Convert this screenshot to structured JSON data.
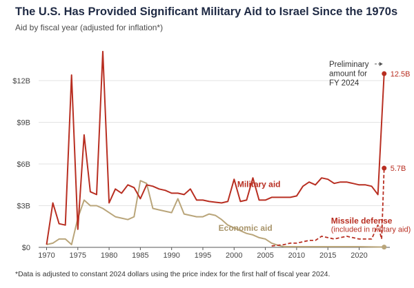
{
  "title": "The U.S. Has Provided Significant Military Aid to Israel Since the 1970s",
  "subtitle": "Aid by fiscal year (adjusted for inflation*)",
  "footnote": "*Data is adjusted to constant 2024 dollars using the price index for the first half of fiscal year 2024.",
  "colors": {
    "military": "#b82e21",
    "economic": "#b9a57a",
    "missile": "#b82e21",
    "grid": "#e3e3e3",
    "axis": "#555555"
  },
  "chart_data": {
    "type": "line",
    "title": "The U.S. Has Provided Significant Military Aid to Israel Since the 1970s",
    "subtitle": "Aid by fiscal year (adjusted for inflation*)",
    "xlabel": "",
    "ylabel": "",
    "xlim": [
      1969,
      2026
    ],
    "ylim": [
      0,
      15
    ],
    "grid": true,
    "x_ticks": [
      1970,
      1975,
      1980,
      1985,
      1990,
      1995,
      2000,
      2005,
      2010,
      2015,
      2020
    ],
    "x_tick_labels": [
      "1970",
      "1975",
      "1980",
      "1985",
      "1990",
      "1995",
      "2000",
      "2005",
      "2010",
      "2015",
      "2020"
    ],
    "y_ticks": [
      0,
      3,
      6,
      9,
      12
    ],
    "y_tick_labels": [
      "$0",
      "$3B",
      "$6B",
      "$9B",
      "$12B"
    ],
    "series": [
      {
        "name": "Military aid",
        "style": "solid",
        "points": [
          [
            1970,
            0.2
          ],
          [
            1971,
            3.2
          ],
          [
            1972,
            1.7
          ],
          [
            1973,
            1.6
          ],
          [
            1974,
            12.4
          ],
          [
            1975,
            1.3
          ],
          [
            1976,
            8.1
          ],
          [
            1977,
            4.0
          ],
          [
            1978,
            3.8
          ],
          [
            1979,
            14.1
          ],
          [
            1980,
            3.2
          ],
          [
            1981,
            4.2
          ],
          [
            1982,
            3.9
          ],
          [
            1983,
            4.5
          ],
          [
            1984,
            4.3
          ],
          [
            1985,
            3.5
          ],
          [
            1986,
            4.5
          ],
          [
            1987,
            4.4
          ],
          [
            1988,
            4.2
          ],
          [
            1989,
            4.1
          ],
          [
            1990,
            3.9
          ],
          [
            1991,
            3.9
          ],
          [
            1992,
            3.8
          ],
          [
            1993,
            4.2
          ],
          [
            1994,
            3.4
          ],
          [
            1995,
            3.4
          ],
          [
            1996,
            3.3
          ],
          [
            1997,
            3.25
          ],
          [
            1998,
            3.2
          ],
          [
            1999,
            3.3
          ],
          [
            2000,
            4.9
          ],
          [
            2001,
            3.3
          ],
          [
            2002,
            3.4
          ],
          [
            2003,
            5.0
          ],
          [
            2004,
            3.4
          ],
          [
            2005,
            3.4
          ],
          [
            2006,
            3.6
          ],
          [
            2007,
            3.6
          ],
          [
            2008,
            3.6
          ],
          [
            2009,
            3.6
          ],
          [
            2010,
            3.7
          ],
          [
            2011,
            4.4
          ],
          [
            2012,
            4.7
          ],
          [
            2013,
            4.5
          ],
          [
            2014,
            5.0
          ],
          [
            2015,
            4.9
          ],
          [
            2016,
            4.6
          ],
          [
            2017,
            4.7
          ],
          [
            2018,
            4.7
          ],
          [
            2019,
            4.6
          ],
          [
            2020,
            4.5
          ],
          [
            2021,
            4.5
          ],
          [
            2022,
            4.4
          ],
          [
            2023,
            3.8
          ],
          [
            2024,
            12.5
          ]
        ]
      },
      {
        "name": "Economic aid",
        "style": "solid",
        "points": [
          [
            1970,
            0.2
          ],
          [
            1971,
            0.3
          ],
          [
            1972,
            0.6
          ],
          [
            1973,
            0.6
          ],
          [
            1974,
            0.2
          ],
          [
            1975,
            2.1
          ],
          [
            1976,
            3.4
          ],
          [
            1977,
            3.0
          ],
          [
            1978,
            3.0
          ],
          [
            1979,
            2.8
          ],
          [
            1980,
            2.5
          ],
          [
            1981,
            2.2
          ],
          [
            1982,
            2.1
          ],
          [
            1983,
            2.0
          ],
          [
            1984,
            2.2
          ],
          [
            1985,
            4.8
          ],
          [
            1986,
            4.6
          ],
          [
            1987,
            2.8
          ],
          [
            1988,
            2.7
          ],
          [
            1989,
            2.6
          ],
          [
            1990,
            2.5
          ],
          [
            1991,
            3.5
          ],
          [
            1992,
            2.4
          ],
          [
            1993,
            2.3
          ],
          [
            1994,
            2.2
          ],
          [
            1995,
            2.2
          ],
          [
            1996,
            2.4
          ],
          [
            1997,
            2.3
          ],
          [
            1998,
            2.0
          ],
          [
            1999,
            1.6
          ],
          [
            2000,
            1.4
          ],
          [
            2001,
            1.2
          ],
          [
            2002,
            1.0
          ],
          [
            2003,
            0.9
          ],
          [
            2004,
            0.7
          ],
          [
            2005,
            0.6
          ],
          [
            2006,
            0.3
          ],
          [
            2007,
            0.15
          ],
          [
            2008,
            0.05
          ],
          [
            2009,
            0.05
          ],
          [
            2010,
            0.05
          ],
          [
            2015,
            0.05
          ],
          [
            2020,
            0.05
          ],
          [
            2024,
            0.02
          ]
        ]
      },
      {
        "name": "Missile defense (included in military aid)",
        "style": "dashed",
        "points": [
          [
            2006,
            0.1
          ],
          [
            2007,
            0.15
          ],
          [
            2008,
            0.2
          ],
          [
            2009,
            0.3
          ],
          [
            2010,
            0.3
          ],
          [
            2011,
            0.4
          ],
          [
            2012,
            0.5
          ],
          [
            2013,
            0.5
          ],
          [
            2014,
            0.8
          ],
          [
            2015,
            0.7
          ],
          [
            2016,
            0.6
          ],
          [
            2017,
            0.7
          ],
          [
            2018,
            0.8
          ],
          [
            2019,
            0.7
          ],
          [
            2020,
            0.6
          ],
          [
            2021,
            0.6
          ],
          [
            2022,
            0.6
          ],
          [
            2023,
            1.6
          ],
          [
            2023.6,
            0.6
          ],
          [
            2024,
            5.7
          ]
        ]
      }
    ],
    "end_labels": [
      {
        "series": "Military aid",
        "text": "12.5B",
        "x": 2024,
        "y": 12.5
      },
      {
        "series": "Missile defense (included in military aid)",
        "text": "5.7B",
        "x": 2024,
        "y": 5.7
      }
    ],
    "annotations": [
      {
        "text": "Military aid",
        "x": 2000.5,
        "y": 4.35,
        "series": "Military aid"
      },
      {
        "text": "Economic aid",
        "x": 1997.5,
        "y": 1.2,
        "series": "Economic aid"
      },
      {
        "text": "Missile defense",
        "x": 2015.5,
        "y": 1.7,
        "series": "Missile defense (included in military aid)"
      },
      {
        "text": "(included in military aid)",
        "x": 2015.5,
        "y": 1.12,
        "series": "Missile defense (included in military aid)"
      },
      {
        "text": "Preliminary\namount for\nFY 2024",
        "x": 2015.2,
        "y": 12.6,
        "series": "none"
      }
    ]
  }
}
